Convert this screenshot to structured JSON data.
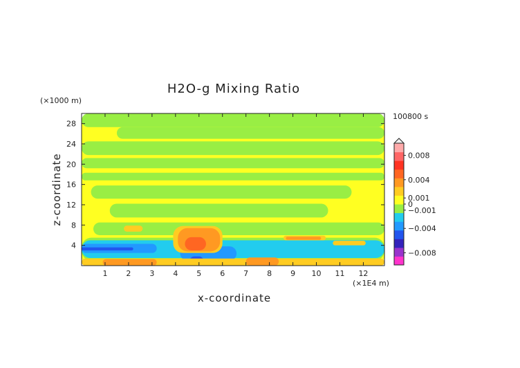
{
  "chart_data": {
    "type": "heatmap",
    "title": "H2O-g Mixing Ratio",
    "xlabel": "x-coordinate",
    "ylabel": "z-coordinate",
    "x_unit": "(×1E4 m)",
    "y_unit": "(×1000 m)",
    "time_label": "100800 s",
    "xlim": [
      0,
      12.9
    ],
    "ylim": [
      0,
      30
    ],
    "x_ticks": [
      "1",
      "2",
      "3",
      "4",
      "5",
      "6",
      "7",
      "8",
      "9",
      "10",
      "11",
      "12"
    ],
    "x_tick_values": [
      1,
      2,
      3,
      4,
      5,
      6,
      7,
      8,
      9,
      10,
      11,
      12
    ],
    "y_ticks": [
      "4",
      "8",
      "12",
      "16",
      "20",
      "24",
      "28"
    ],
    "y_tick_values": [
      4,
      8,
      12,
      16,
      20,
      24,
      28
    ],
    "colorbar": {
      "labels": [
        "0.008",
        "0.004",
        "0.001",
        "0",
        "−0.001",
        "−0.004",
        "−0.008"
      ],
      "label_values": [
        0.008,
        0.004,
        0.001,
        0,
        -0.001,
        -0.004,
        -0.008
      ],
      "range": [
        -0.01,
        0.01
      ],
      "colors": [
        "#ff33cc",
        "#9933cc",
        "#3322bb",
        "#2255ee",
        "#2299ff",
        "#22ccee",
        "#99ee44",
        "#ffff22",
        "#ffcc22",
        "#ff9922",
        "#ff6622",
        "#ff3322",
        "#ff6666",
        "#ffaaaa"
      ]
    },
    "regions": [
      {
        "level": 0.0003,
        "color": "#ffff22",
        "x": [
          0,
          12.9
        ],
        "z": [
          0,
          30
        ]
      },
      {
        "level": -0.0003,
        "color": "#99ee44",
        "x": [
          0,
          12.9
        ],
        "z": [
          27.3,
          30
        ]
      },
      {
        "level": -0.0003,
        "color": "#99ee44",
        "x": [
          1.5,
          12.9
        ],
        "z": [
          25,
          27.3
        ]
      },
      {
        "level": -0.0003,
        "color": "#99ee44",
        "x": [
          0,
          12.9
        ],
        "z": [
          21.8,
          24.5
        ]
      },
      {
        "level": -0.0003,
        "color": "#99ee44",
        "x": [
          0,
          12.9
        ],
        "z": [
          19.2,
          21.2
        ]
      },
      {
        "level": -0.0003,
        "color": "#99ee44",
        "x": [
          0,
          12.9
        ],
        "z": [
          16.8,
          18.3
        ]
      },
      {
        "level": -0.0003,
        "color": "#99ee44",
        "x": [
          0.4,
          11.5
        ],
        "z": [
          13.2,
          15.8
        ]
      },
      {
        "level": -0.0003,
        "color": "#99ee44",
        "x": [
          1.2,
          10.5
        ],
        "z": [
          9.5,
          12.2
        ]
      },
      {
        "level": -0.0003,
        "color": "#99ee44",
        "x": [
          0.5,
          12.9
        ],
        "z": [
          6,
          8.5
        ]
      },
      {
        "level": -0.0003,
        "color": "#99ee44",
        "x": [
          0,
          12.9
        ],
        "z": [
          1,
          5.5
        ]
      },
      {
        "level": -0.002,
        "color": "#22ccee",
        "x": [
          0,
          12.9
        ],
        "z": [
          1.5,
          5
        ]
      },
      {
        "level": -0.003,
        "color": "#2299ff",
        "x": [
          0,
          3.2
        ],
        "z": [
          2.5,
          4.3
        ]
      },
      {
        "level": -0.003,
        "color": "#2299ff",
        "x": [
          4.2,
          6.6
        ],
        "z": [
          1,
          3.8
        ]
      },
      {
        "level": -0.005,
        "color": "#2255ee",
        "x": [
          0,
          2.2
        ],
        "z": [
          3,
          3.6
        ]
      },
      {
        "level": -0.005,
        "color": "#2255ee",
        "x": [
          4.6,
          5.2
        ],
        "z": [
          0,
          1.8
        ]
      },
      {
        "level": 0.0008,
        "color": "#ffcc22",
        "x": [
          0,
          12.9
        ],
        "z": [
          0,
          1.4
        ]
      },
      {
        "level": 0.0008,
        "color": "#ffcc22",
        "x": [
          3.9,
          6.0
        ],
        "z": [
          2.5,
          7.8
        ]
      },
      {
        "level": 0.0008,
        "color": "#ffcc22",
        "x": [
          1.8,
          2.6
        ],
        "z": [
          6.7,
          7.9
        ]
      },
      {
        "level": 0.0008,
        "color": "#ffcc22",
        "x": [
          8.6,
          10.4
        ],
        "z": [
          5,
          5.9
        ]
      },
      {
        "level": 0.0008,
        "color": "#ffcc22",
        "x": [
          10.7,
          12.1
        ],
        "z": [
          4,
          4.9
        ]
      },
      {
        "level": 0.002,
        "color": "#ff9922",
        "x": [
          4.1,
          5.9
        ],
        "z": [
          2.8,
          7.4
        ]
      },
      {
        "level": 0.002,
        "color": "#ff9922",
        "x": [
          0.9,
          3.2
        ],
        "z": [
          0,
          1.3
        ]
      },
      {
        "level": 0.002,
        "color": "#ff9922",
        "x": [
          7.0,
          8.4
        ],
        "z": [
          0,
          1.6
        ]
      },
      {
        "level": 0.002,
        "color": "#ff9922",
        "x": [
          8.7,
          10.2
        ],
        "z": [
          5.1,
          5.7
        ]
      },
      {
        "level": 0.003,
        "color": "#ff6622",
        "x": [
          4.4,
          5.3
        ],
        "z": [
          3,
          5.6
        ]
      }
    ]
  }
}
